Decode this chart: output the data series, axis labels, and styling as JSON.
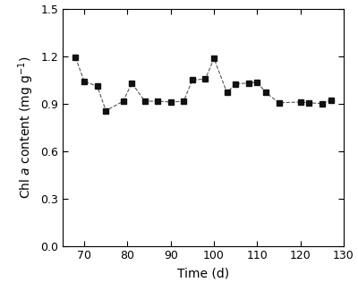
{
  "x": [
    68,
    70,
    73,
    75,
    79,
    81,
    84,
    87,
    90,
    93,
    95,
    98,
    100,
    103,
    105,
    108,
    110,
    112,
    115,
    120,
    122,
    125,
    127
  ],
  "y": [
    1.19,
    1.04,
    1.01,
    0.855,
    0.915,
    1.03,
    0.915,
    0.915,
    0.91,
    0.915,
    1.05,
    1.055,
    1.185,
    0.97,
    1.025,
    1.03,
    1.035,
    0.97,
    0.905,
    0.91,
    0.905,
    0.9,
    0.92
  ],
  "xlabel": "Time (d)",
  "ylabel": "Chl $a$ content (mg g$^{-1}$)",
  "xlim": [
    65,
    130
  ],
  "ylim": [
    0.0,
    1.5
  ],
  "xticks": [
    70,
    80,
    90,
    100,
    110,
    120,
    130
  ],
  "yticks": [
    0.0,
    0.3,
    0.6,
    0.9,
    1.2,
    1.5
  ],
  "line_color": "#555555",
  "marker_color": "#111111",
  "marker": "s",
  "markersize": 5,
  "linewidth": 0.8,
  "background_color": "#ffffff",
  "figsize": [
    4.0,
    3.25
  ],
  "dpi": 100
}
